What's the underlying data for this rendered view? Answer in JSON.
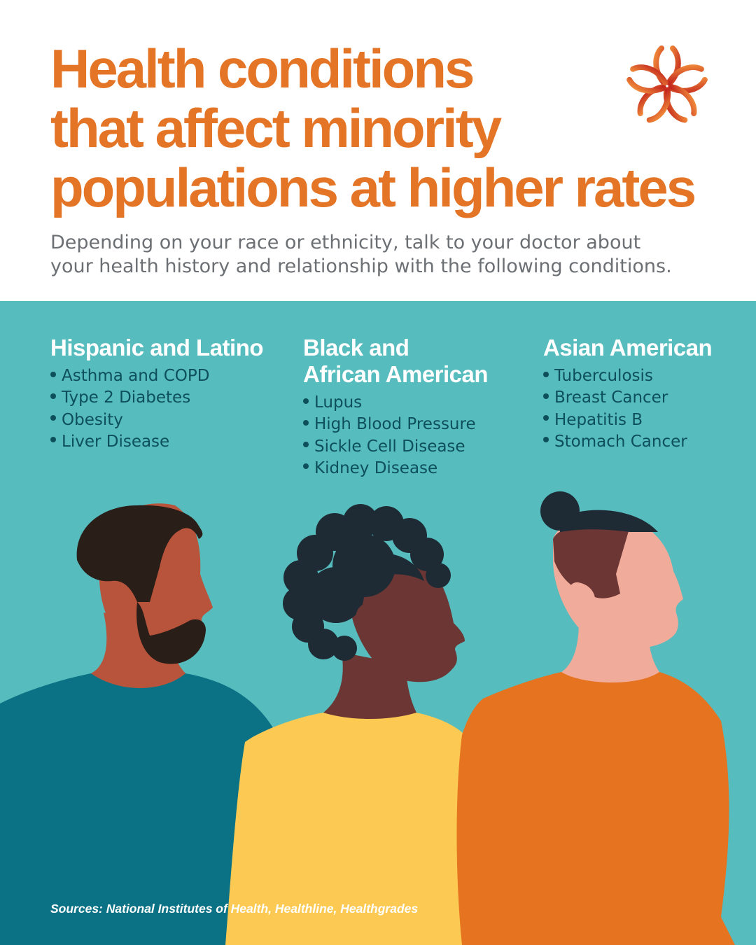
{
  "header": {
    "title_lines": [
      "Health conditions",
      "that affect minority",
      "populations at higher rates"
    ],
    "subtitle_lines": [
      "Depending on your race or ethnicity, talk to your doctor about",
      "your health history and relationship with the following conditions."
    ],
    "logo_icon": "flower-logo-icon"
  },
  "groups": [
    {
      "heading_lines": [
        "Hispanic and Latino"
      ],
      "conditions": [
        "Asthma and COPD",
        "Type 2 Diabetes",
        "Obesity",
        "Liver Disease"
      ]
    },
    {
      "heading_lines": [
        "Black and",
        "African American"
      ],
      "conditions": [
        "Lupus",
        "High Blood Pressure",
        "Sickle Cell Disease",
        "Kidney Disease"
      ]
    },
    {
      "heading_lines": [
        "Asian American"
      ],
      "conditions": [
        "Tuberculosis",
        "Breast Cancer",
        "Hepatitis B",
        "Stomach Cancer"
      ]
    }
  ],
  "footer": {
    "sources": "Sources: National Institutes of Health, Healthline, Healthgrades"
  },
  "colors": {
    "title": "#e47526",
    "panel": "#56bcbd",
    "list_text": "#0e4f5c",
    "subtitle": "#6c6f73"
  }
}
